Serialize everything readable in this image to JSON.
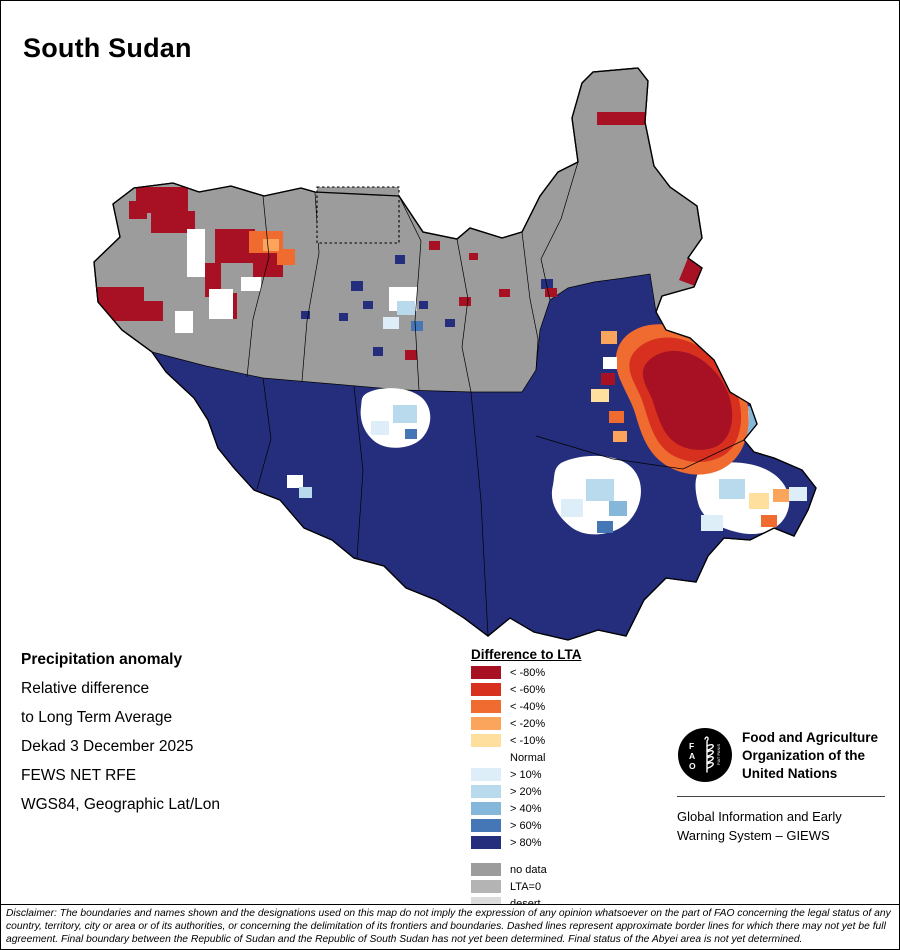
{
  "title": "South Sudan",
  "info_lines": [
    {
      "text": "Precipitation anomaly",
      "bold": true
    },
    {
      "text": "Relative difference",
      "bold": false
    },
    {
      "text": "to Long Term Average",
      "bold": false
    },
    {
      "text": "Dekad 3 December 2025",
      "bold": false
    },
    {
      "text": "FEWS NET RFE",
      "bold": false
    },
    {
      "text": "WGS84, Geographic Lat/Lon",
      "bold": false
    }
  ],
  "legend": {
    "title": "Difference to LTA",
    "items": [
      {
        "label": "< -80%",
        "color_key": "neg80"
      },
      {
        "label": "< -60%",
        "color_key": "neg60"
      },
      {
        "label": "< -40%",
        "color_key": "neg40"
      },
      {
        "label": "< -20%",
        "color_key": "neg20"
      },
      {
        "label": "< -10%",
        "color_key": "neg10"
      },
      {
        "label": "Normal",
        "color_key": "normal"
      },
      {
        "label": "> 10%",
        "color_key": "pos10"
      },
      {
        "label": "> 20%",
        "color_key": "pos20"
      },
      {
        "label": "> 40%",
        "color_key": "pos40"
      },
      {
        "label": "> 60%",
        "color_key": "pos60"
      },
      {
        "label": "> 80%",
        "color_key": "pos80"
      },
      {
        "label": "no data",
        "color_key": "nodata",
        "gap_before": true
      },
      {
        "label": "LTA=0",
        "color_key": "lta0"
      },
      {
        "label": "desert",
        "color_key": "desert"
      }
    ]
  },
  "org": {
    "logo_letters": [
      "F",
      "A",
      "O"
    ],
    "logo_motto": "FIAT PANIS",
    "name_lines": [
      "Food and Agriculture",
      "Organization of the",
      "United Nations"
    ],
    "subtitle_lines": [
      "Global Information and Early",
      "Warning System – GIEWS"
    ]
  },
  "disclaimer": "Disclaimer: The boundaries and names shown and the designations used on this map do not imply the expression of any opinion whatsoever on the part of FAO concerning the legal status of any country, territory, city or area or of its authorities, or concerning the delimitation of its frontiers and boundaries. Dashed lines represent approximate border lines for which there may not yet be full agreement.  Final boundary between the Republic of Sudan and the Republic of South Sudan has not yet been determined. Final status of the Abyei area is not yet determined.",
  "palette": {
    "neg80": "#a81023",
    "neg60": "#d7301f",
    "neg40": "#ef6b30",
    "neg20": "#fba55c",
    "neg10": "#fedf9e",
    "normal": "#ffffff",
    "pos10": "#ddeef8",
    "pos20": "#b9d9ec",
    "pos40": "#85b7da",
    "pos60": "#4576b5",
    "pos80": "#252e7d",
    "nodata": "#9c9c9c",
    "lta0": "#b4b4b4",
    "desert": "#dcdcdc"
  }
}
